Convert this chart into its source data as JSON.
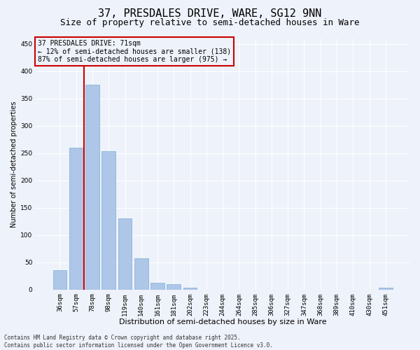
{
  "title": "37, PRESDALES DRIVE, WARE, SG12 9NN",
  "subtitle": "Size of property relative to semi-detached houses in Ware",
  "xlabel": "Distribution of semi-detached houses by size in Ware",
  "ylabel": "Number of semi-detached properties",
  "categories": [
    "36sqm",
    "57sqm",
    "78sqm",
    "98sqm",
    "119sqm",
    "140sqm",
    "161sqm",
    "181sqm",
    "202sqm",
    "223sqm",
    "244sqm",
    "264sqm",
    "285sqm",
    "306sqm",
    "327sqm",
    "347sqm",
    "368sqm",
    "389sqm",
    "410sqm",
    "430sqm",
    "451sqm"
  ],
  "values": [
    35,
    260,
    375,
    253,
    130,
    57,
    12,
    10,
    4,
    0,
    0,
    0,
    0,
    0,
    0,
    0,
    0,
    0,
    0,
    0,
    4
  ],
  "bar_color": "#aec6e8",
  "bar_edge_color": "#7aafd4",
  "vline_color": "#cc0000",
  "annotation_box_text": "37 PRESDALES DRIVE: 71sqm\n← 12% of semi-detached houses are smaller (138)\n87% of semi-detached houses are larger (975) →",
  "annotation_box_color": "#cc0000",
  "bg_color": "#eef2fa",
  "grid_color": "#ffffff",
  "ylim": [
    0,
    460
  ],
  "yticks": [
    0,
    50,
    100,
    150,
    200,
    250,
    300,
    350,
    400,
    450
  ],
  "footnote": "Contains HM Land Registry data © Crown copyright and database right 2025.\nContains public sector information licensed under the Open Government Licence v3.0.",
  "title_fontsize": 11,
  "subtitle_fontsize": 9,
  "xlabel_fontsize": 8,
  "ylabel_fontsize": 7,
  "tick_fontsize": 6.5,
  "annot_fontsize": 7,
  "footnote_fontsize": 5.5
}
